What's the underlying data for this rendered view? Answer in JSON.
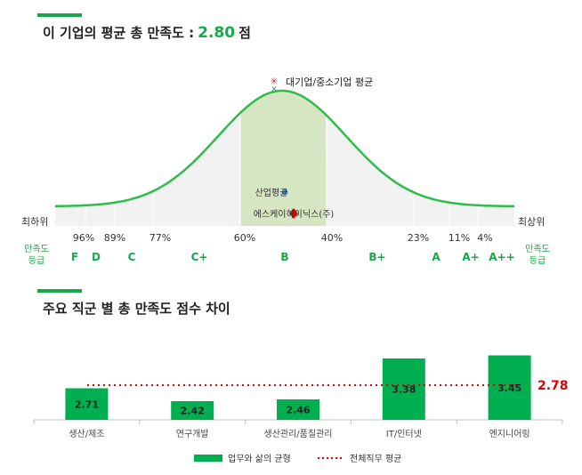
{
  "section1": {
    "title_prefix": "이 기업의 평균 총 만족도 :",
    "score": "2.80",
    "title_suffix": "점",
    "edge_low": "최하위",
    "edge_high": "최상위",
    "grade_label_line1": "만족도",
    "grade_label_line2": "등급",
    "percentiles": [
      "96%",
      "89%",
      "77%",
      "60%",
      "40%",
      "23%",
      "11%",
      "4%"
    ],
    "grades": [
      "F",
      "D",
      "C",
      "C+",
      "B",
      "B+",
      "A",
      "A+",
      "A++"
    ],
    "markers": {
      "large_avg": "대기업/중소기업 평균",
      "industry_avg": "산업평균",
      "company": "에스케이하이닉스(주)"
    }
  },
  "section2": {
    "title": "주요 직군 별 총 만족도 점수 차이"
  },
  "chart_data": {
    "type": "bar",
    "categories": [
      "생산/제조",
      "연구개발",
      "생산관리/품질관리",
      "IT/인터넷",
      "엔지니어링"
    ],
    "series": [
      {
        "name": "업무와 삶의 균형",
        "values": [
          2.71,
          2.42,
          2.46,
          3.38,
          3.45
        ]
      }
    ],
    "reference_line": {
      "name": "전체직무 평균",
      "value": 2.78,
      "label": "2.78"
    },
    "ylim": [
      2.0,
      3.6
    ],
    "colors": {
      "bar": "#00b050",
      "reference": "#e00000"
    },
    "legend_position": "bottom"
  },
  "colors": {
    "accent": "#1aa64b",
    "curve_fill_center": "#d6e5c2",
    "curve_fill": "#f2f2f2"
  }
}
